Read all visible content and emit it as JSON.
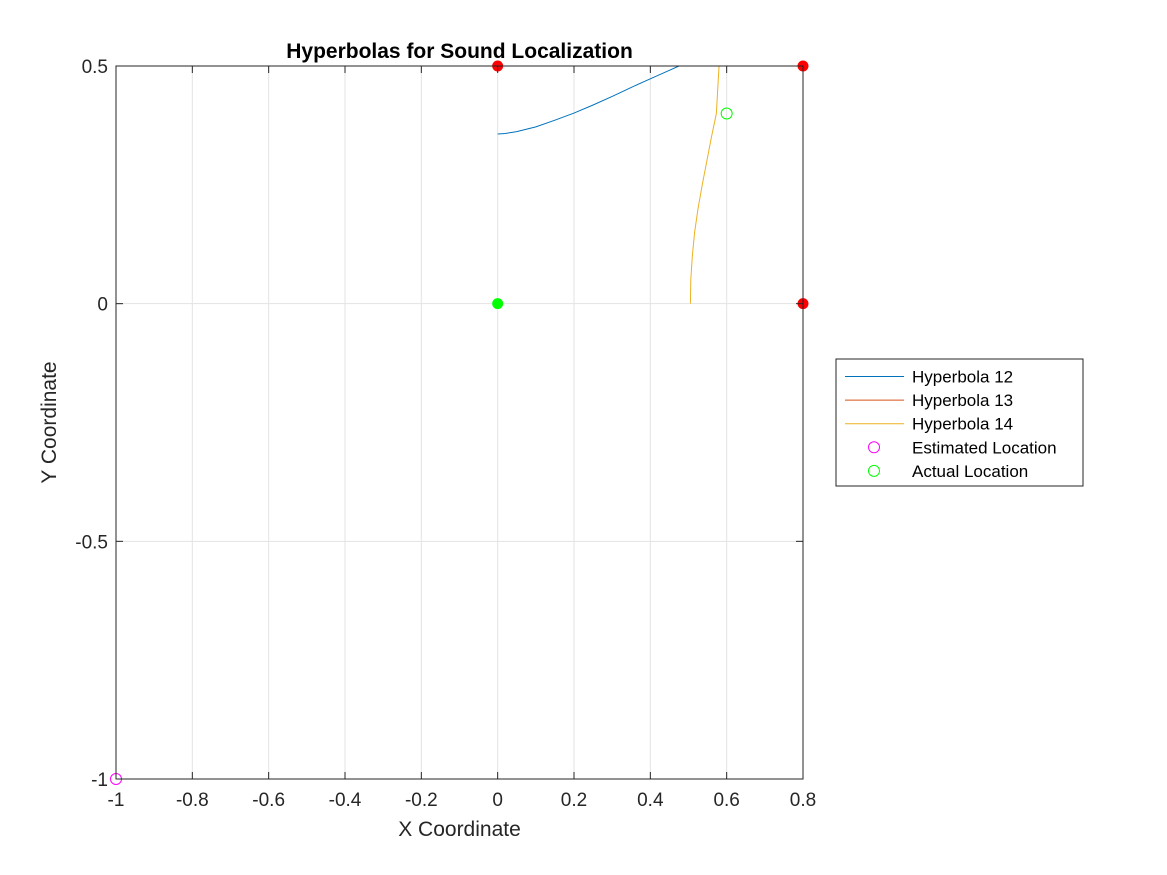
{
  "chart_data": {
    "type": "line",
    "title": "Hyperbolas for Sound Localization",
    "xlabel": "X Coordinate",
    "ylabel": "Y Coordinate",
    "xlim": [
      -1,
      0.8
    ],
    "ylim": [
      -1,
      0.5
    ],
    "xticks": [
      -1,
      -0.8,
      -0.6,
      -0.4,
      -0.2,
      0,
      0.2,
      0.4,
      0.6,
      0.8
    ],
    "xtick_labels": [
      "-1",
      "-0.8",
      "-0.6",
      "-0.4",
      "-0.2",
      "0",
      "0.2",
      "0.4",
      "0.6",
      "0.8"
    ],
    "yticks": [
      -1,
      -0.5,
      0,
      0.5
    ],
    "ytick_labels": [
      "-1",
      "-0.5",
      "0",
      "0.5"
    ],
    "grid": true,
    "legend_position": "outside-right",
    "series": [
      {
        "name": "Hyperbola 12",
        "kind": "line",
        "color": "#0072BD",
        "x": [
          0.0,
          0.02,
          0.05,
          0.1,
          0.15,
          0.2,
          0.25,
          0.3,
          0.35,
          0.4,
          0.45,
          0.475
        ],
        "y": [
          0.357,
          0.358,
          0.362,
          0.372,
          0.386,
          0.401,
          0.418,
          0.436,
          0.455,
          0.473,
          0.491,
          0.5
        ]
      },
      {
        "name": "Hyperbola 13",
        "kind": "line",
        "color": "#D95319",
        "x": [],
        "y": []
      },
      {
        "name": "Hyperbola 14",
        "kind": "line",
        "color": "#EDB120",
        "x": [
          0.505,
          0.506,
          0.51,
          0.516,
          0.525,
          0.536,
          0.548,
          0.56,
          0.573,
          0.58
        ],
        "y": [
          0.0,
          0.05,
          0.1,
          0.15,
          0.2,
          0.25,
          0.3,
          0.35,
          0.4,
          0.5
        ]
      },
      {
        "name": "Estimated Location",
        "kind": "marker",
        "marker": "circle-open",
        "color": "#FF00FF",
        "x": [
          -1
        ],
        "y": [
          -1
        ]
      },
      {
        "name": "Actual Location",
        "kind": "marker",
        "marker": "circle-open",
        "color": "#00FF00",
        "x": [
          0.6
        ],
        "y": [
          0.4
        ]
      }
    ],
    "extra_points": [
      {
        "kind": "microphone",
        "color": "#FF0000",
        "x": 0,
        "y": 0.5
      },
      {
        "kind": "microphone",
        "color": "#FF0000",
        "x": 0.8,
        "y": 0.5
      },
      {
        "kind": "microphone",
        "color": "#FF0000",
        "x": 0.8,
        "y": 0
      },
      {
        "kind": "reference",
        "color": "#00FF00",
        "x": 0,
        "y": 0
      }
    ]
  }
}
